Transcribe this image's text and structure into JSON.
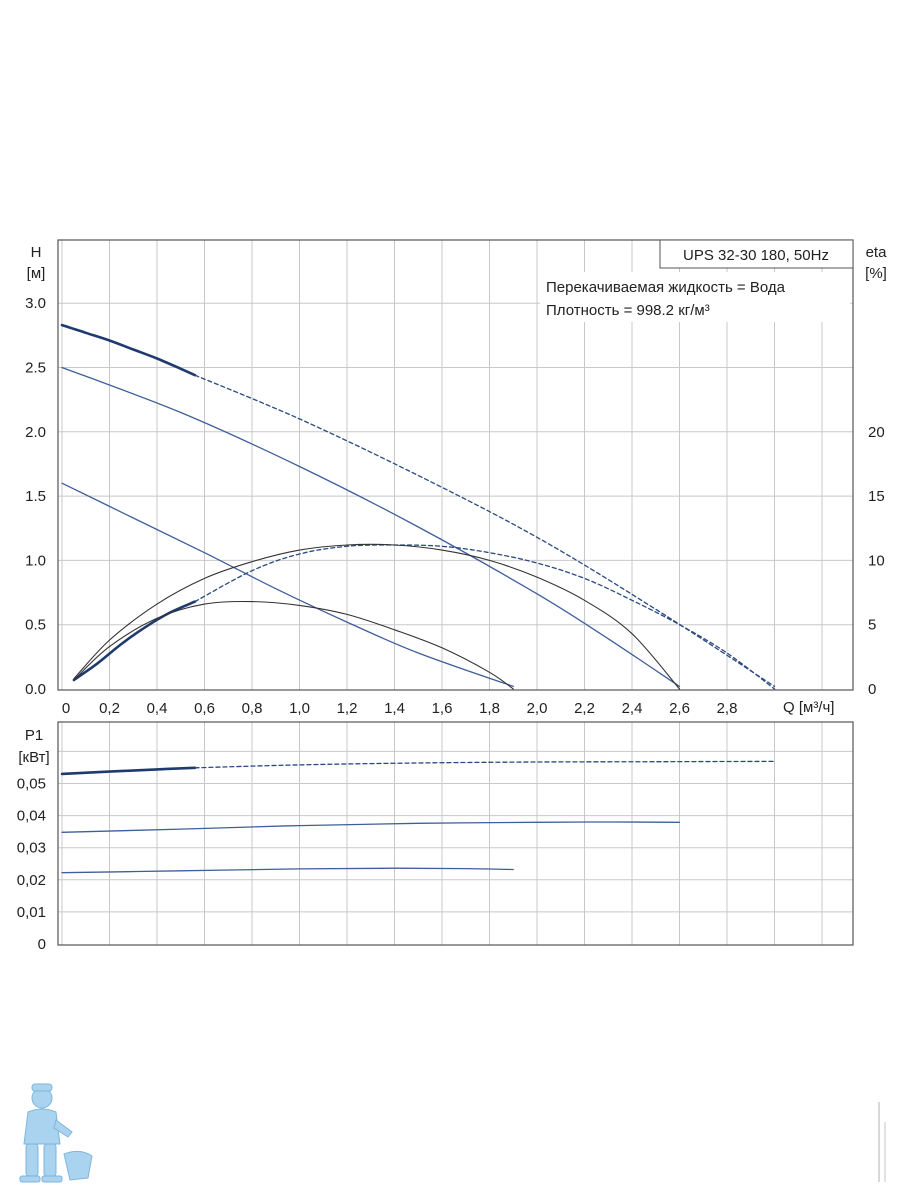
{
  "colors": {
    "grid": "#c8c8c8",
    "frame": "#555555",
    "blue": "#2a4a80",
    "dark": "#222222",
    "thin": "#333333",
    "mascot": "#a9d3ee"
  },
  "chart_data": [
    {
      "type": "line",
      "panel": "head-efficiency",
      "title_box": "UPS 32-30 180, 50Hz",
      "annotations": [
        "Перекачиваемая жидкость = Вода",
        "Плотность = 998.2 кг/м³"
      ],
      "y_label": "H",
      "y_unit": "[м]",
      "y2_label": "eta",
      "y2_unit": "[%]",
      "x_label": "Q [м³/ч]",
      "xlim": [
        0,
        3.3
      ],
      "ylim": [
        0,
        3.5
      ],
      "y2lim": [
        0,
        35
      ],
      "x_ticks": [
        "0",
        "0,2",
        "0,4",
        "0,6",
        "0,8",
        "1,0",
        "1,2",
        "1,4",
        "1,6",
        "1,8",
        "2,0",
        "2,2",
        "2,4",
        "2,6",
        "2,8"
      ],
      "y_ticks": [
        "0.0",
        "0.5",
        "1.0",
        "1.5",
        "2.0",
        "2.5",
        "3.0"
      ],
      "y2_ticks": [
        "0",
        "5",
        "10",
        "15",
        "20"
      ],
      "grid": true,
      "series": [
        {
          "axis": "H",
          "style": "bold-solid",
          "x": [
            0.0,
            0.1,
            0.2,
            0.3,
            0.4,
            0.5,
            0.56
          ],
          "y": [
            2.83,
            2.77,
            2.71,
            2.64,
            2.57,
            2.49,
            2.44
          ]
        },
        {
          "axis": "H",
          "style": "dashed",
          "x": [
            0.56,
            1.0,
            1.5,
            2.0,
            2.5,
            3.0
          ],
          "y": [
            2.44,
            2.1,
            1.66,
            1.18,
            0.62,
            0.02
          ]
        },
        {
          "axis": "H",
          "style": "blue-solid",
          "x": [
            0.0,
            0.5,
            1.0,
            1.5,
            2.0,
            2.3,
            2.6
          ],
          "y": [
            2.5,
            2.15,
            1.73,
            1.26,
            0.74,
            0.39,
            0.02
          ]
        },
        {
          "axis": "H",
          "style": "blue-solid",
          "x": [
            0.0,
            0.3,
            0.6,
            0.9,
            1.2,
            1.5,
            1.9
          ],
          "y": [
            1.6,
            1.33,
            1.06,
            0.78,
            0.52,
            0.28,
            0.02
          ]
        },
        {
          "axis": "eta",
          "style": "bold-solid",
          "x": [
            0.05,
            0.15,
            0.25,
            0.35,
            0.45,
            0.56
          ],
          "y": [
            0.7,
            2.0,
            3.5,
            4.8,
            5.9,
            6.8
          ]
        },
        {
          "axis": "eta",
          "style": "dashed",
          "x": [
            0.56,
            0.8,
            1.0,
            1.2,
            1.4,
            1.6,
            1.8,
            2.0,
            2.2,
            2.4,
            2.6,
            2.8,
            3.0
          ],
          "y": [
            6.8,
            9.2,
            10.5,
            11.1,
            11.2,
            11.1,
            10.6,
            9.8,
            8.6,
            6.9,
            5.0,
            2.8,
            0.0
          ]
        },
        {
          "axis": "eta",
          "style": "thin-solid",
          "x": [
            0.05,
            0.2,
            0.4,
            0.6,
            0.8,
            1.0,
            1.2,
            1.4,
            1.6,
            1.8,
            2.0,
            2.2,
            2.4,
            2.6
          ],
          "y": [
            0.8,
            3.8,
            6.6,
            8.6,
            9.9,
            10.8,
            11.2,
            11.2,
            10.8,
            10.0,
            8.7,
            6.9,
            4.3,
            0.0
          ]
        },
        {
          "axis": "eta",
          "style": "thin-solid",
          "x": [
            0.05,
            0.2,
            0.4,
            0.6,
            0.8,
            1.0,
            1.2,
            1.4,
            1.6,
            1.8,
            1.9
          ],
          "y": [
            0.7,
            3.3,
            5.5,
            6.6,
            6.8,
            6.5,
            5.8,
            4.6,
            3.2,
            1.3,
            0.0
          ]
        }
      ]
    },
    {
      "type": "line",
      "panel": "power",
      "y_label": "P1",
      "y_unit": "[кВт]",
      "xlim": [
        0,
        3.3
      ],
      "ylim": [
        0,
        0.062
      ],
      "y_ticks": [
        "0",
        "0,01",
        "0,02",
        "0,03",
        "0,04",
        "0,05"
      ],
      "grid": true,
      "series": [
        {
          "style": "bold-solid",
          "x": [
            0.0,
            0.2,
            0.4,
            0.56
          ],
          "y": [
            0.053,
            0.0537,
            0.0544,
            0.0549
          ]
        },
        {
          "style": "dashed",
          "x": [
            0.56,
            1.0,
            1.5,
            2.0,
            2.5,
            3.0
          ],
          "y": [
            0.0549,
            0.0558,
            0.0564,
            0.0567,
            0.0568,
            0.0569
          ]
        },
        {
          "style": "blue-solid",
          "x": [
            0.0,
            0.5,
            1.0,
            1.5,
            2.0,
            2.3,
            2.6
          ],
          "y": [
            0.0348,
            0.0358,
            0.0369,
            0.0376,
            0.0379,
            0.038,
            0.0379
          ]
        },
        {
          "style": "blue-solid",
          "x": [
            0.0,
            0.5,
            1.0,
            1.4,
            1.7,
            1.9
          ],
          "y": [
            0.0222,
            0.0228,
            0.0234,
            0.0236,
            0.0235,
            0.0232
          ]
        }
      ]
    }
  ]
}
